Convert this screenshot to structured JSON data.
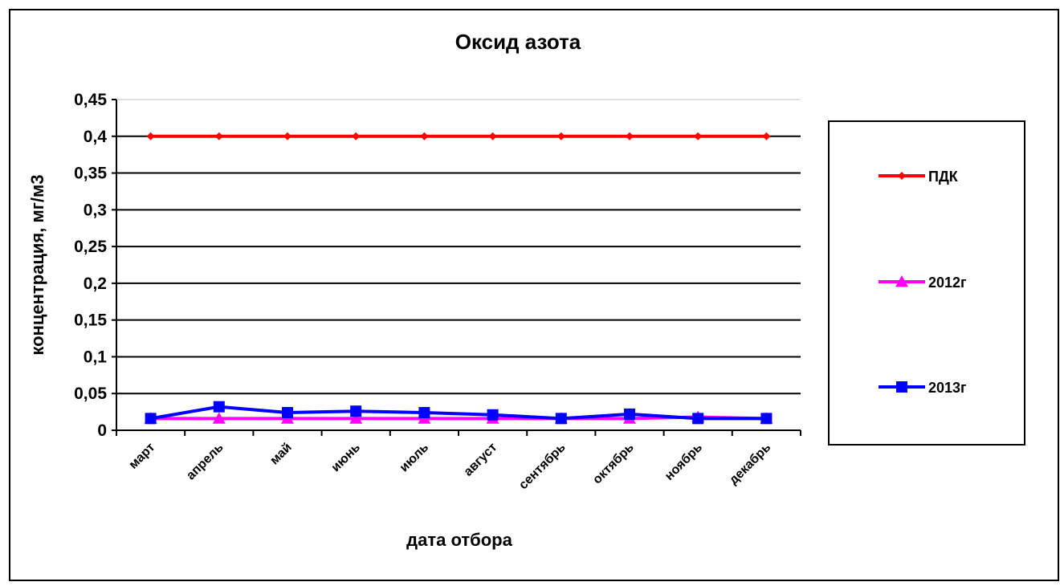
{
  "chart_data": {
    "type": "line",
    "title": "Оксид азота",
    "xlabel": "дата отбора",
    "ylabel": "концентрация, мг/м3",
    "categories": [
      "март",
      "апрель",
      "май",
      "июнь",
      "июль",
      "август",
      "сентябрь",
      "октябрь",
      "ноябрь",
      "декабрь"
    ],
    "ylim": [
      0,
      0.45
    ],
    "yticks": [
      0,
      0.05,
      0.1,
      0.15,
      0.2,
      0.25,
      0.3,
      0.35,
      0.4,
      0.45
    ],
    "ytick_labels": [
      "0",
      "0,05",
      "0,1",
      "0,15",
      "0,2",
      "0,25",
      "0,3",
      "0,35",
      "0,4",
      "0,45"
    ],
    "grid": true,
    "legend_position": "right",
    "series": [
      {
        "name": "ПДК",
        "color": "#ff0000",
        "marker": "diamond",
        "values": [
          0.4,
          0.4,
          0.4,
          0.4,
          0.4,
          0.4,
          0.4,
          0.4,
          0.4,
          0.4
        ]
      },
      {
        "name": "2012г",
        "color": "#ff00ff",
        "marker": "triangle",
        "values": [
          0.016,
          0.016,
          0.016,
          0.016,
          0.016,
          0.016,
          0.016,
          0.016,
          0.018,
          0.016
        ]
      },
      {
        "name": "2013г",
        "color": "#0000ff",
        "marker": "square",
        "values": [
          0.016,
          0.032,
          0.024,
          0.026,
          0.024,
          0.021,
          0.016,
          0.022,
          0.016,
          0.016
        ]
      }
    ]
  }
}
